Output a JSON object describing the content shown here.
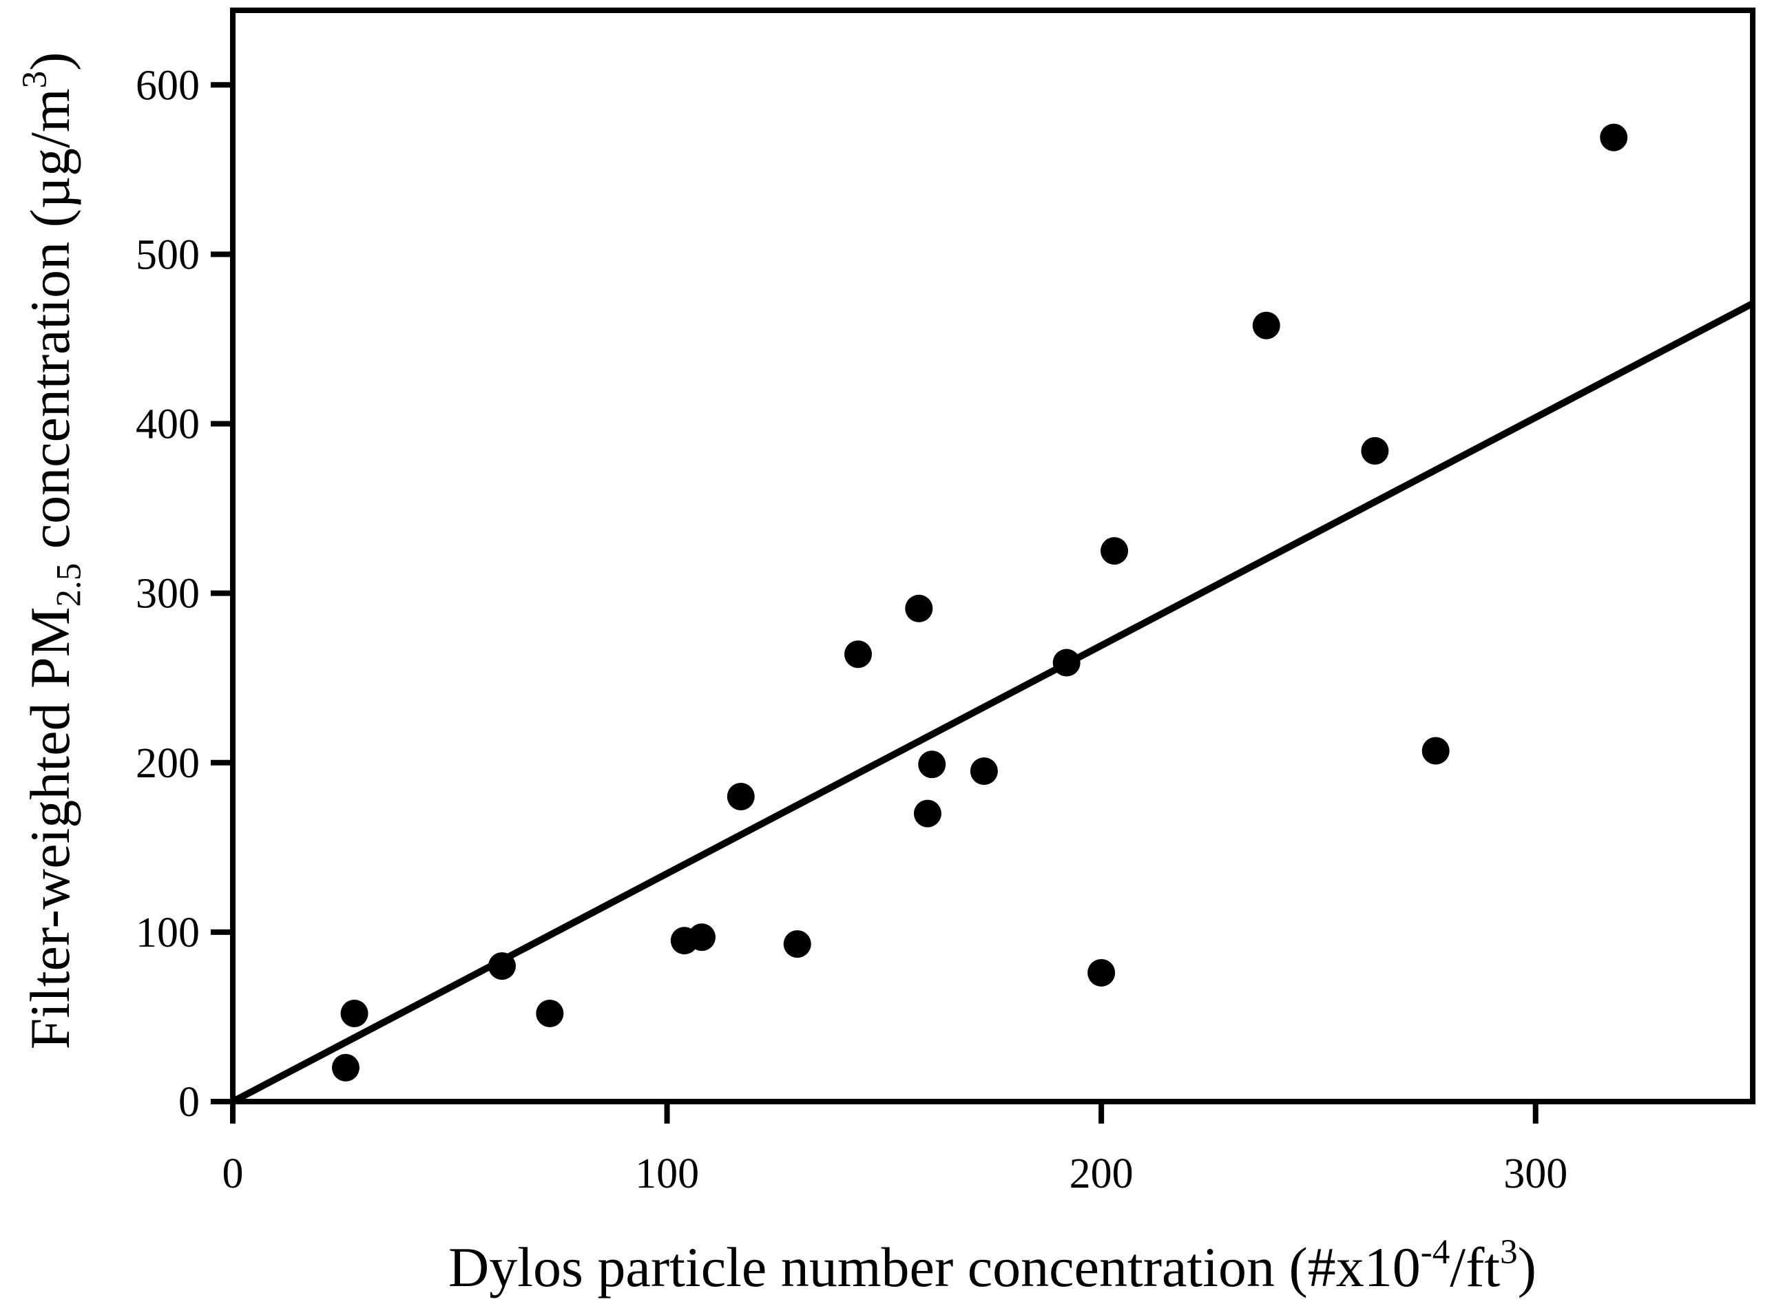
{
  "figure": {
    "background": "#ffffff",
    "ink": "#000000"
  },
  "chart_data": {
    "type": "scatter",
    "title": "",
    "xlabel": "Dylos particle number concentration (#x10-4/ft3)",
    "ylabel": "Filter-weighted PM2.5 concentration (µg/m3)",
    "xlabel_rich": [
      {
        "t": "Dylos particle number concentration (#x10"
      },
      {
        "t": "-4",
        "s": "sup"
      },
      {
        "t": "/ft"
      },
      {
        "t": "3",
        "s": "sup"
      },
      {
        "t": ")"
      }
    ],
    "ylabel_rich": [
      {
        "t": "Filter-weighted PM"
      },
      {
        "t": "2.5",
        "s": "sub"
      },
      {
        "t": " concentration (µg/m"
      },
      {
        "t": "3",
        "s": "sup"
      },
      {
        "t": ")"
      }
    ],
    "x_ticks": [
      0,
      100,
      200,
      300
    ],
    "y_ticks": [
      0,
      100,
      200,
      300,
      400,
      500,
      600
    ],
    "xlim": [
      0,
      350
    ],
    "ylim": [
      0,
      644
    ],
    "grid": false,
    "legend": null,
    "marker": {
      "shape": "circle",
      "color": "#000000",
      "radius_px": 20
    },
    "trend_line": {
      "x1": 0,
      "y1": 0,
      "x2": 350,
      "y2": 471,
      "color": "#000000"
    },
    "points": [
      [
        26,
        20
      ],
      [
        28,
        52
      ],
      [
        62,
        80
      ],
      [
        73,
        52
      ],
      [
        104,
        95
      ],
      [
        108,
        97
      ],
      [
        117,
        180
      ],
      [
        130,
        93
      ],
      [
        144,
        264
      ],
      [
        158,
        291
      ],
      [
        160,
        170
      ],
      [
        161,
        199
      ],
      [
        173,
        195
      ],
      [
        192,
        259
      ],
      [
        200,
        76
      ],
      [
        203,
        325
      ],
      [
        238,
        458
      ],
      [
        263,
        384
      ],
      [
        277,
        207
      ],
      [
        318,
        569
      ]
    ]
  }
}
